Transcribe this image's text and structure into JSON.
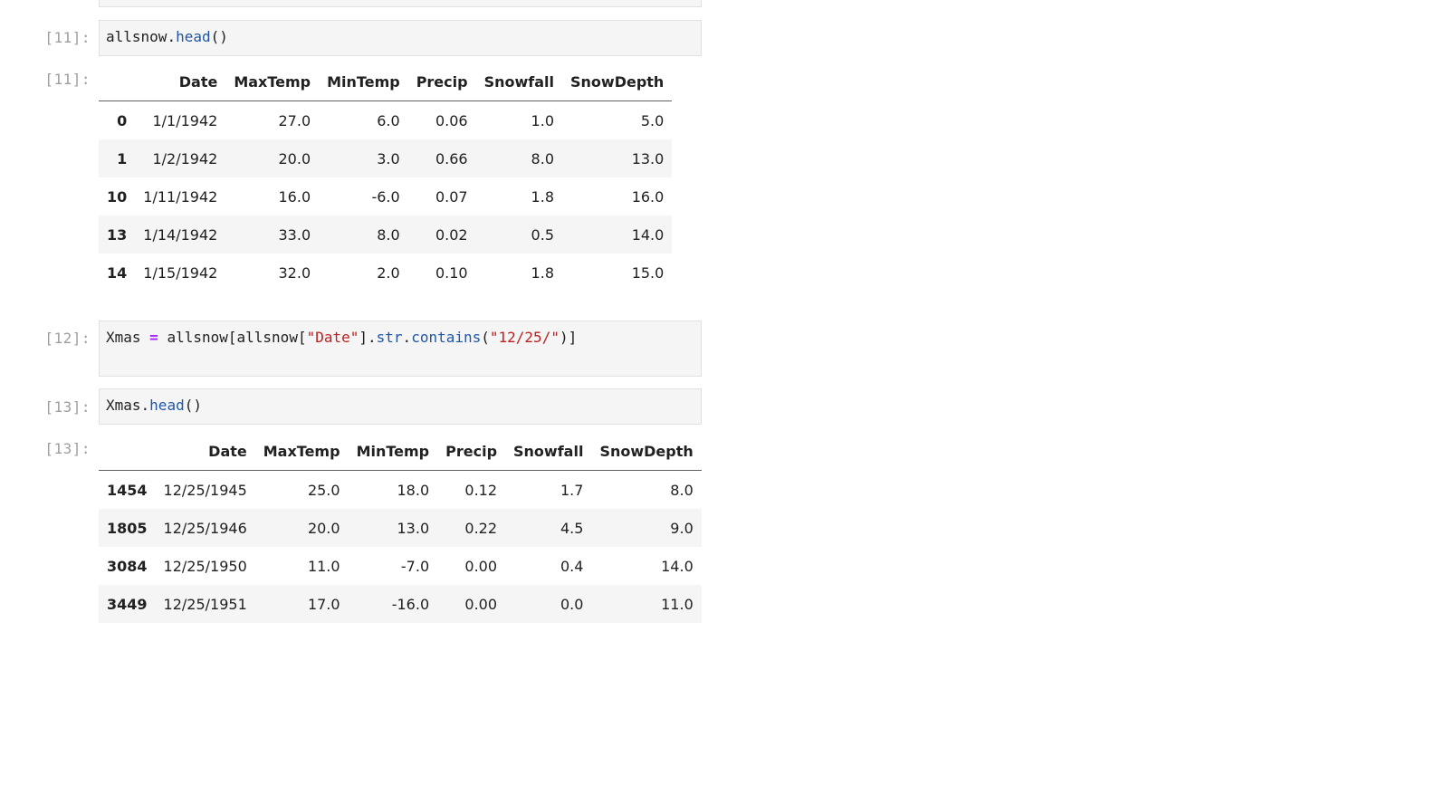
{
  "cells": [
    {
      "prompt_in": "[11]:",
      "code": [
        "allsnow",
        ".",
        "head",
        "()"
      ],
      "prompt_out": "[11]:",
      "table": {
        "columns": [
          "",
          "Date",
          "MaxTemp",
          "MinTemp",
          "Precip",
          "Snowfall",
          "SnowDepth"
        ],
        "rows": [
          {
            "index": "0",
            "values": [
              "1/1/1942",
              "27.0",
              "6.0",
              "0.06",
              "1.0",
              "5.0"
            ]
          },
          {
            "index": "1",
            "values": [
              "1/2/1942",
              "20.0",
              "3.0",
              "0.66",
              "8.0",
              "13.0"
            ]
          },
          {
            "index": "10",
            "values": [
              "1/11/1942",
              "16.0",
              "-6.0",
              "0.07",
              "1.8",
              "16.0"
            ]
          },
          {
            "index": "13",
            "values": [
              "1/14/1942",
              "33.0",
              "8.0",
              "0.02",
              "0.5",
              "14.0"
            ]
          },
          {
            "index": "14",
            "values": [
              "1/15/1942",
              "32.0",
              "2.0",
              "0.10",
              "1.8",
              "15.0"
            ]
          }
        ]
      }
    },
    {
      "prompt_in": "[12]:",
      "code_line": {
        "var": "Xmas",
        "op": "=",
        "obj": "allsnow[allsnow[",
        "str1": "\"Date\"",
        "mid": "].",
        "attr1": "str",
        "dot": ".",
        "attr2": "contains",
        "open": "(",
        "str2": "\"12/25/\"",
        "close": ")]"
      }
    },
    {
      "prompt_in": "[13]:",
      "code": [
        "Xmas",
        ".",
        "head",
        "()"
      ],
      "prompt_out": "[13]:",
      "table": {
        "columns": [
          "",
          "Date",
          "MaxTemp",
          "MinTemp",
          "Precip",
          "Snowfall",
          "SnowDepth"
        ],
        "rows": [
          {
            "index": "1454",
            "values": [
              "12/25/1945",
              "25.0",
              "18.0",
              "0.12",
              "1.7",
              "8.0"
            ]
          },
          {
            "index": "1805",
            "values": [
              "12/25/1946",
              "20.0",
              "13.0",
              "0.22",
              "4.5",
              "9.0"
            ]
          },
          {
            "index": "3084",
            "values": [
              "12/25/1950",
              "11.0",
              "-7.0",
              "0.00",
              "0.4",
              "14.0"
            ]
          },
          {
            "index": "3449",
            "values": [
              "12/25/1951",
              "17.0",
              "-16.0",
              "0.00",
              "0.0",
              "11.0"
            ]
          }
        ]
      }
    }
  ]
}
